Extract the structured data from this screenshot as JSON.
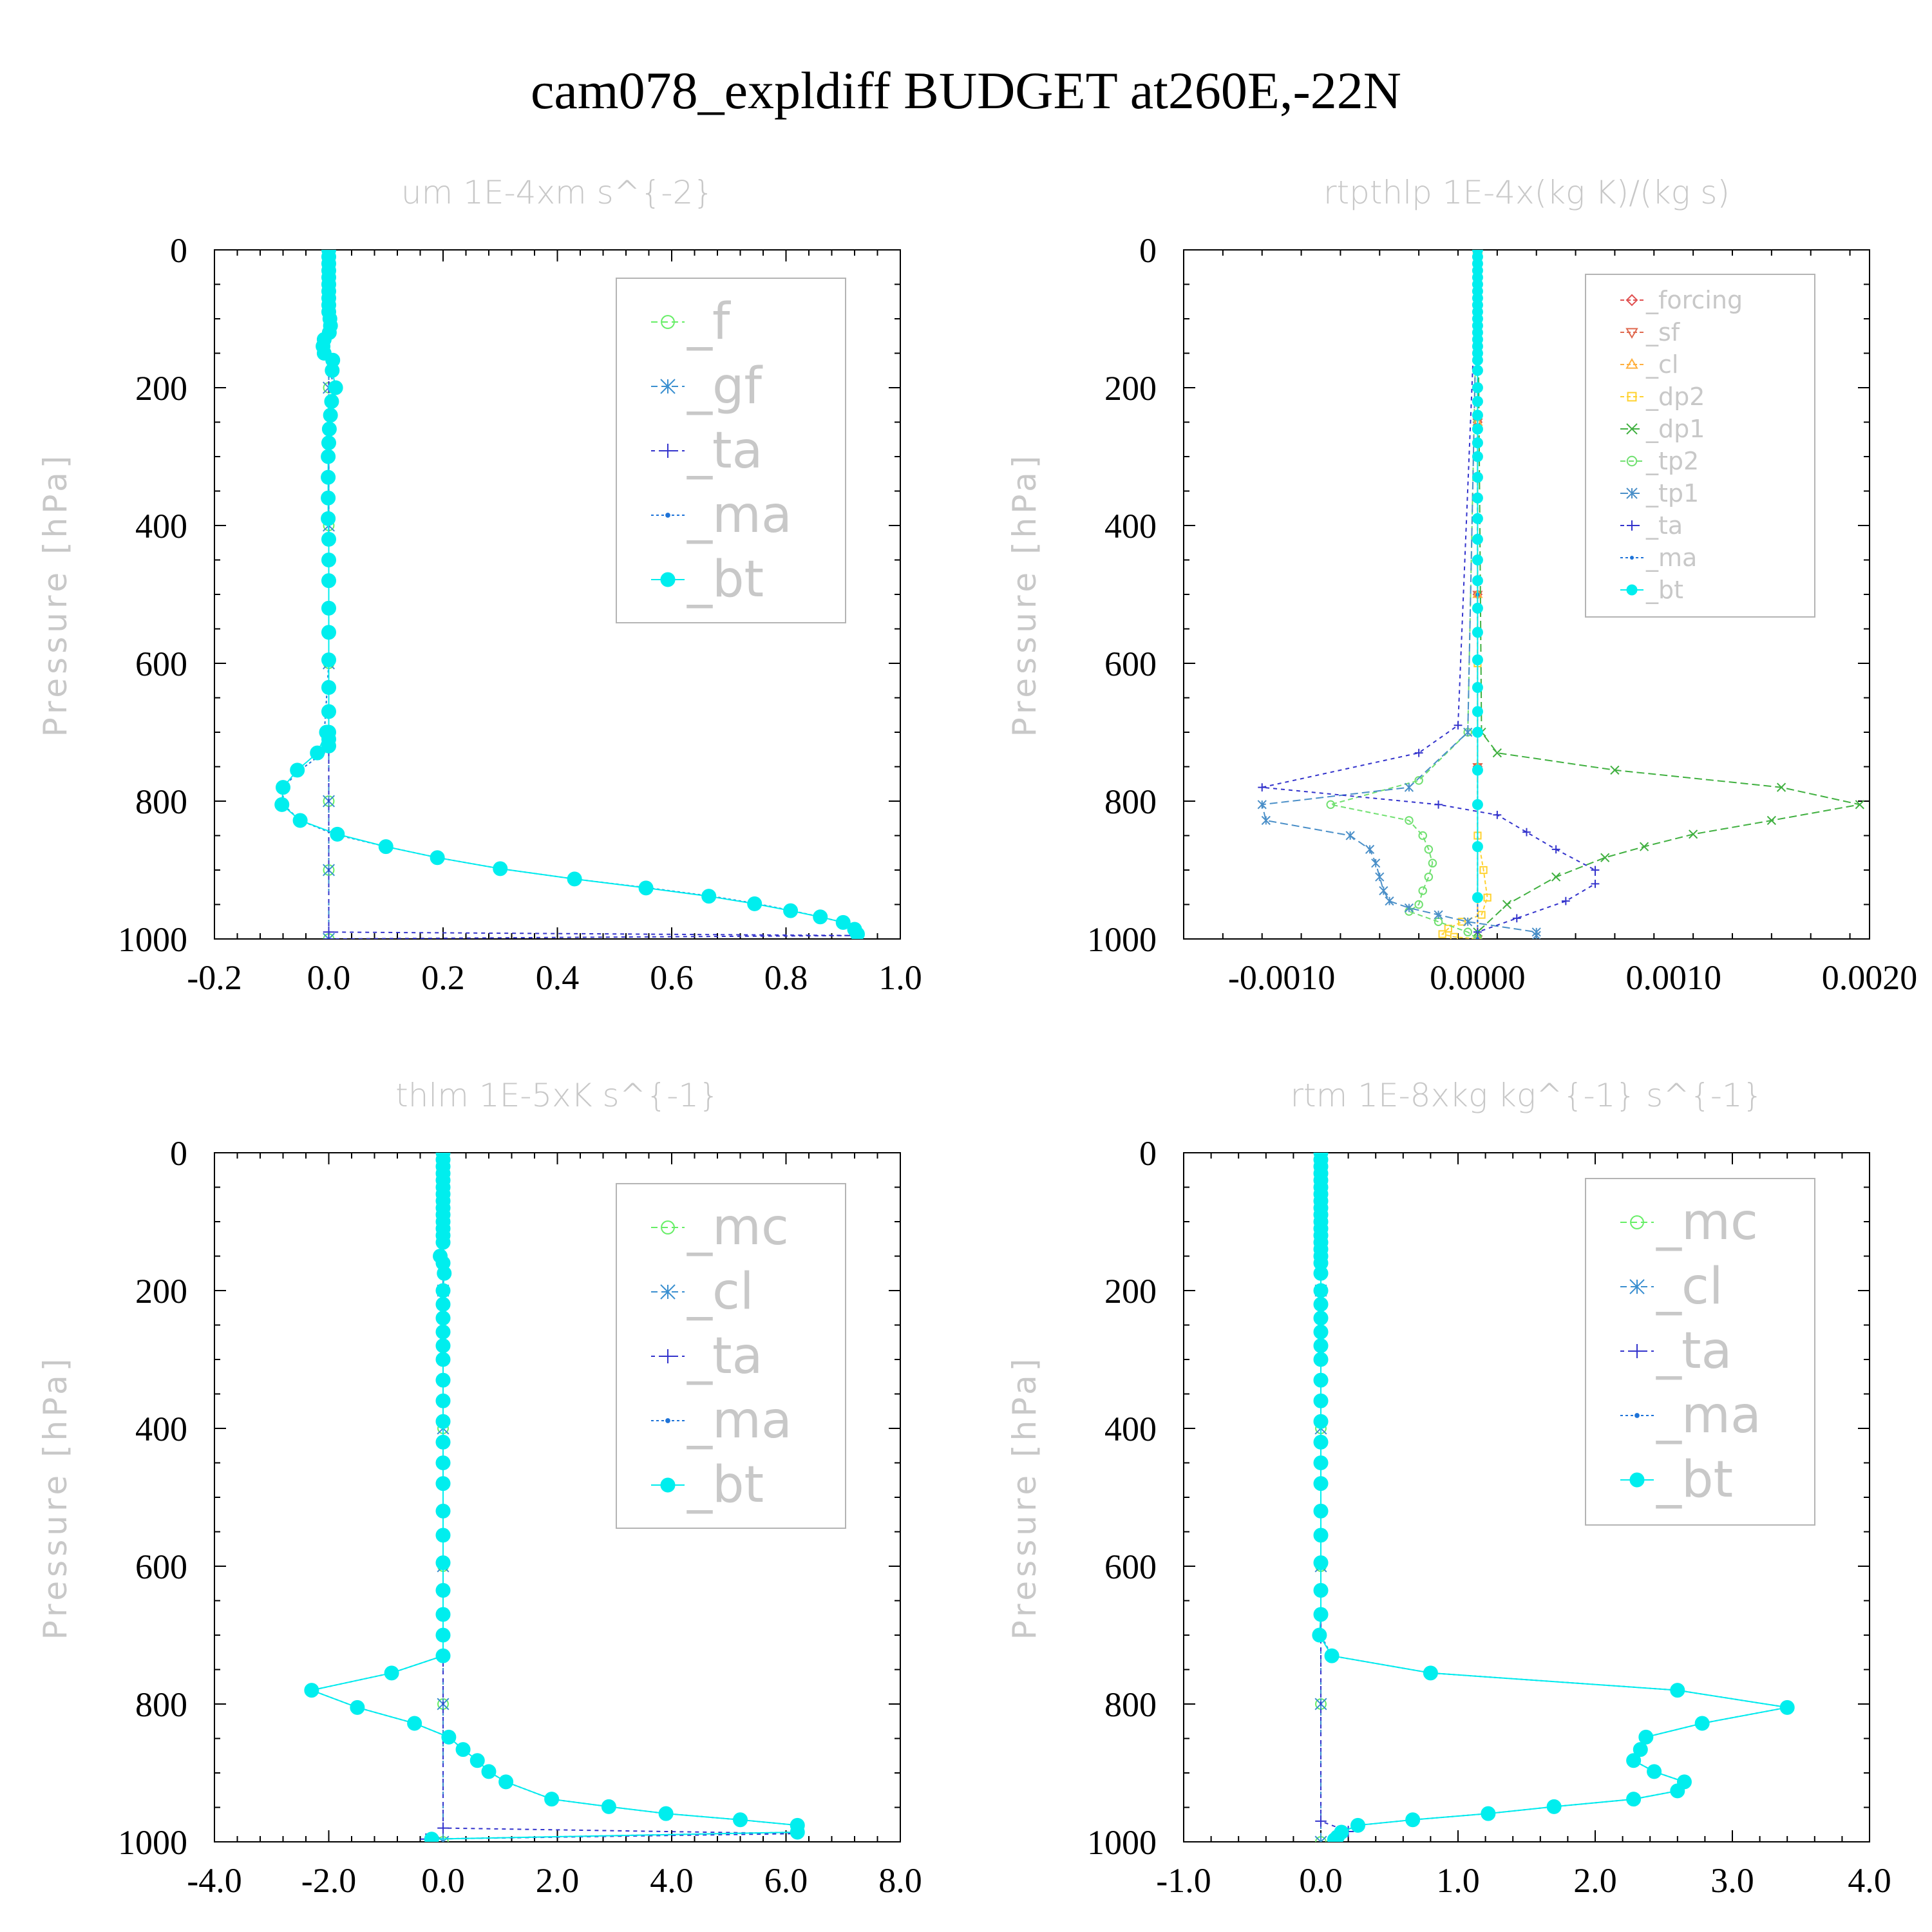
{
  "figure": {
    "title": "cam078_expldiff  BUDGET at260E,-22N"
  },
  "colors": {
    "axis": "#000000",
    "muted_text": "#c8c8c8",
    "legend_box": "#b4b4b4",
    "f": "#66ee66",
    "mc": "#66ee66",
    "gf": "#3a8fd0",
    "cl": "#3a8fd0",
    "ta": "#3333cc",
    "ma": "#1e73d8",
    "bt": "#00eeee",
    "forcing": "#e05050",
    "sf": "#e06a50",
    "cl_orange": "#ffb040",
    "dp2": "#ffd230",
    "dp1": "#40b040",
    "tp2": "#70e070",
    "tp1": "#4a8fc8"
  },
  "chart_data": [
    {
      "type": "line",
      "title": "um   1E-4xm s^{-2}",
      "ylabel": "Pressure [hPa]",
      "xlabel": "",
      "xlim": [
        -0.2,
        1.0
      ],
      "ylim": [
        1000,
        0
      ],
      "xticks": [
        "-0.2",
        "0.0",
        "0.2",
        "0.4",
        "0.6",
        "0.8",
        "1.0"
      ],
      "yticks": [
        "0",
        "200",
        "400",
        "600",
        "800",
        "1000"
      ],
      "legend": [
        "_f",
        "_gf",
        "_ta",
        "_ma",
        "_bt"
      ],
      "series": [
        {
          "name": "_f",
          "x": [
            0,
            0,
            0,
            0,
            0,
            0,
            0
          ],
          "y": [
            0,
            200,
            400,
            600,
            800,
            900,
            1000
          ]
        },
        {
          "name": "_gf",
          "x": [
            0,
            0,
            0,
            0,
            0,
            0,
            0
          ],
          "y": [
            0,
            200,
            400,
            600,
            800,
            900,
            1000
          ]
        },
        {
          "name": "_ta",
          "x": [
            0,
            0,
            0,
            0.92,
            0
          ],
          "y": [
            0,
            700,
            990,
            995,
            1000
          ]
        },
        {
          "name": "_ma",
          "x": [
            0,
            0,
            -0.01,
            0.01,
            0,
            0,
            -0.01,
            -0.05,
            -0.08,
            -0.08,
            -0.05,
            0.01,
            0.1,
            0.19,
            0.3,
            0.43,
            0.56,
            0.67,
            0.75,
            0.81,
            0.86,
            0.9,
            0.92,
            0.92
          ],
          "y": [
            0,
            100,
            140,
            200,
            300,
            600,
            730,
            755,
            780,
            805,
            828,
            848,
            866,
            882,
            898,
            913,
            926,
            938,
            949,
            959,
            968,
            976,
            986,
            993
          ]
        },
        {
          "name": "_bt",
          "x": [
            0,
            0,
            0,
            0,
            0,
            0,
            0,
            0,
            0,
            0,
            0.002,
            0.003,
            0.001,
            -0.008,
            -0.01,
            -0.008,
            0.007,
            0.006,
            0.012,
            0.005,
            0.003,
            0.001,
            0,
            -0.001,
            -0.001,
            -0.001,
            -0.001,
            0,
            0,
            0,
            0,
            0,
            0,
            0,
            0,
            0,
            0,
            0,
            -0.004,
            -0.02,
            -0.055,
            -0.08,
            -0.082,
            -0.05,
            0.015,
            0.1,
            0.19,
            0.3,
            0.43,
            0.555,
            0.665,
            0.745,
            0.808,
            0.86,
            0.9,
            0.92,
            0.925
          ],
          "y": [
            0,
            10,
            20,
            30,
            40,
            50,
            60,
            70,
            80,
            90,
            100,
            110,
            120,
            130,
            140,
            150,
            160,
            175,
            200,
            220,
            240,
            260,
            280,
            300,
            330,
            360,
            390,
            420,
            450,
            480,
            520,
            555,
            595,
            635,
            670,
            700,
            710,
            720,
            700,
            730,
            755,
            780,
            805,
            828,
            848,
            866,
            882,
            898,
            913,
            926,
            938,
            949,
            959,
            968,
            976,
            986,
            993
          ]
        }
      ]
    },
    {
      "type": "line",
      "title": "rtpthlp   1E-4x(kg K)/(kg s)",
      "ylabel": "Pressure [hPa]",
      "xlabel": "",
      "xlim": [
        -0.0015,
        0.002
      ],
      "ylim": [
        1000,
        0
      ],
      "xticks": [
        "-0.0010",
        "0.0000",
        "0.0010",
        "0.0020"
      ],
      "yticks": [
        "0",
        "200",
        "400",
        "600",
        "800",
        "1000"
      ],
      "legend": [
        "_forcing",
        "_sf",
        "_cl",
        "_dp2",
        "_dp1",
        "_tp2",
        "_tp1",
        "_ta",
        "_ma",
        "_bt"
      ],
      "series": [
        {
          "name": "_forcing",
          "x": [
            0,
            0,
            0,
            0,
            0
          ],
          "y": [
            0,
            250,
            500,
            750,
            1000
          ]
        },
        {
          "name": "_sf",
          "x": [
            0,
            0,
            0,
            0,
            0
          ],
          "y": [
            0,
            250,
            500,
            750,
            1000
          ]
        },
        {
          "name": "_cl",
          "x": [
            0,
            0,
            0,
            0,
            0
          ],
          "y": [
            0,
            250,
            500,
            750,
            1000
          ]
        },
        {
          "name": "_dp2",
          "x": [
            0,
            0,
            0,
            3e-05,
            5e-05,
            2e-05,
            -8e-05,
            -0.00015,
            -0.00018,
            -0.00012,
            0
          ],
          "y": [
            0,
            600,
            850,
            900,
            940,
            965,
            975,
            985,
            993,
            997,
            1000
          ]
        },
        {
          "name": "_dp1",
          "x": [
            0,
            2e-05,
            0.0001,
            0.0007,
            0.00155,
            0.00195,
            0.0015,
            0.0011,
            0.00085,
            0.00065,
            0.0004,
            0.00015,
            0
          ],
          "y": [
            0,
            700,
            730,
            755,
            780,
            805,
            828,
            848,
            866,
            882,
            910,
            950,
            990
          ]
        },
        {
          "name": "_tp2",
          "x": [
            0,
            -5e-05,
            -0.0003,
            -0.00075,
            -0.00035,
            -0.00028,
            -0.00025,
            -0.00023,
            -0.00025,
            -0.00028,
            -0.0003,
            -0.00035,
            -0.0002,
            -5e-05,
            0
          ],
          "y": [
            0,
            700,
            770,
            805,
            828,
            850,
            870,
            890,
            910,
            930,
            950,
            960,
            975,
            990,
            1000
          ]
        },
        {
          "name": "_tp1",
          "x": [
            0,
            -5e-05,
            -0.00035,
            -0.0011,
            -0.00108,
            -0.00065,
            -0.00055,
            -0.00052,
            -0.0005,
            -0.00048,
            -0.00045,
            -0.00035,
            -0.0002,
            -5e-05,
            0.0003,
            0.0003
          ],
          "y": [
            0,
            700,
            780,
            805,
            828,
            850,
            870,
            890,
            910,
            930,
            945,
            955,
            965,
            975,
            990,
            995
          ]
        },
        {
          "name": "_ta",
          "x": [
            0,
            -0.0001,
            -0.0003,
            -0.0011,
            -0.0002,
            0.0001,
            0.00025,
            0.0004,
            0.0006,
            0.0006,
            0.00045,
            0.0002,
            0
          ],
          "y": [
            0,
            690,
            730,
            780,
            805,
            820,
            845,
            870,
            900,
            920,
            945,
            970,
            990
          ]
        },
        {
          "name": "_ma",
          "x": [
            0,
            0,
            0
          ],
          "y": [
            0,
            500,
            1000
          ]
        },
        {
          "name": "_bt",
          "x": [
            0,
            0,
            0,
            0,
            0,
            0,
            0,
            0,
            0,
            0,
            0,
            0,
            0,
            0,
            0,
            0,
            0,
            0,
            0,
            0,
            0,
            0,
            0,
            0,
            0,
            0,
            0,
            0,
            0,
            0,
            0,
            0,
            0,
            0,
            0,
            0,
            0,
            0,
            0,
            0
          ],
          "y": [
            0,
            10,
            20,
            30,
            40,
            50,
            60,
            70,
            80,
            90,
            100,
            110,
            120,
            130,
            140,
            150,
            160,
            175,
            200,
            220,
            240,
            260,
            280,
            300,
            330,
            360,
            390,
            420,
            450,
            480,
            520,
            555,
            595,
            635,
            670,
            700,
            755,
            805,
            866,
            940
          ]
        }
      ]
    },
    {
      "type": "line",
      "title": "thlm   1E-5xK s^{-1}",
      "ylabel": "Pressure [hPa]",
      "xlabel": "",
      "xlim": [
        -4.0,
        8.0
      ],
      "ylim": [
        1000,
        0
      ],
      "xticks": [
        "-4.0",
        "-2.0",
        "0.0",
        "2.0",
        "4.0",
        "6.0",
        "8.0"
      ],
      "yticks": [
        "0",
        "200",
        "400",
        "600",
        "800",
        "1000"
      ],
      "legend": [
        "_mc",
        "_cl",
        "_ta",
        "_ma",
        "_bt"
      ],
      "series": [
        {
          "name": "_mc",
          "x": [
            0,
            0,
            0,
            0,
            0,
            0
          ],
          "y": [
            0,
            200,
            400,
            600,
            800,
            1000
          ]
        },
        {
          "name": "_cl",
          "x": [
            0,
            0,
            0,
            0,
            0,
            0
          ],
          "y": [
            0,
            200,
            400,
            600,
            800,
            1000
          ]
        },
        {
          "name": "_ta",
          "x": [
            0,
            0,
            6.2,
            -0.3
          ],
          "y": [
            0,
            980,
            988,
            996
          ]
        },
        {
          "name": "_ma",
          "x": [
            0,
            0,
            -0.9,
            -2.3,
            -1.5,
            -0.5,
            0.1,
            0.35,
            0.6,
            0.8,
            1.1,
            1.9,
            2.9,
            3.9,
            5.2,
            6.2,
            6.2,
            -0.2
          ],
          "y": [
            0,
            730,
            755,
            780,
            805,
            828,
            848,
            866,
            882,
            898,
            913,
            938,
            949,
            959,
            968,
            976,
            986,
            996
          ]
        },
        {
          "name": "_bt",
          "x": [
            0,
            0,
            0,
            0,
            0,
            0,
            0,
            0,
            0,
            0,
            0,
            0,
            0,
            0,
            -0.05,
            0,
            0.02,
            0,
            0,
            0,
            0,
            0,
            0,
            0,
            0,
            0,
            0,
            0,
            0,
            0,
            0,
            0,
            0,
            0,
            0,
            0,
            -0.9,
            -2.3,
            -1.5,
            -0.5,
            0.1,
            0.35,
            0.6,
            0.8,
            1.1,
            1.9,
            2.9,
            3.9,
            5.2,
            6.2,
            6.2,
            -0.2
          ],
          "y": [
            0,
            10,
            20,
            30,
            40,
            50,
            60,
            70,
            80,
            90,
            100,
            110,
            120,
            130,
            150,
            160,
            175,
            200,
            220,
            240,
            260,
            280,
            300,
            330,
            360,
            390,
            420,
            450,
            480,
            520,
            555,
            595,
            635,
            670,
            700,
            730,
            755,
            780,
            805,
            828,
            848,
            866,
            882,
            898,
            913,
            938,
            949,
            959,
            968,
            976,
            986,
            996
          ]
        }
      ]
    },
    {
      "type": "line",
      "title": "rtm   1E-8xkg kg^{-1} s^{-1}",
      "ylabel": "Pressure [hPa]",
      "xlabel": "",
      "xlim": [
        -1.0,
        4.0
      ],
      "ylim": [
        1000,
        0
      ],
      "xticks": [
        "-1.0",
        "0.0",
        "1.0",
        "2.0",
        "3.0",
        "4.0"
      ],
      "yticks": [
        "0",
        "200",
        "400",
        "600",
        "800",
        "1000"
      ],
      "legend": [
        "_mc",
        "_cl",
        "_ta",
        "_ma",
        "_bt"
      ],
      "series": [
        {
          "name": "_mc",
          "x": [
            0,
            0,
            0,
            0,
            0,
            0
          ],
          "y": [
            0,
            200,
            400,
            600,
            800,
            1000
          ]
        },
        {
          "name": "_cl",
          "x": [
            0,
            0,
            0,
            0,
            0,
            0
          ],
          "y": [
            0,
            200,
            400,
            600,
            800,
            1000
          ]
        },
        {
          "name": "_ta",
          "x": [
            0,
            0,
            0.2,
            0.1
          ],
          "y": [
            0,
            970,
            985,
            995
          ]
        },
        {
          "name": "_ma",
          "x": [
            0,
            0,
            0.08,
            0.8,
            2.6,
            3.4,
            2.78,
            2.37,
            2.33,
            2.28,
            2.43,
            2.65,
            2.6,
            2.28,
            1.7,
            1.22,
            0.67,
            0.27,
            0.15,
            0.12,
            0.1
          ],
          "y": [
            0,
            700,
            730,
            755,
            780,
            805,
            828,
            848,
            866,
            882,
            898,
            913,
            926,
            938,
            949,
            959,
            968,
            976,
            986,
            993,
            997
          ]
        },
        {
          "name": "_bt",
          "x": [
            0,
            0,
            0,
            0,
            0,
            0,
            0,
            0,
            0,
            0,
            0,
            0,
            0,
            0,
            0,
            0,
            0,
            0,
            0,
            0,
            0,
            0,
            0,
            0,
            0,
            0,
            0,
            0,
            0,
            0,
            0,
            0,
            0,
            0,
            0,
            -0.01,
            0.08,
            0.8,
            2.6,
            3.4,
            2.78,
            2.37,
            2.33,
            2.28,
            2.43,
            2.65,
            2.6,
            2.28,
            1.7,
            1.22,
            0.67,
            0.27,
            0.15,
            0.12,
            0.1
          ],
          "y": [
            0,
            10,
            20,
            30,
            40,
            50,
            60,
            70,
            80,
            90,
            100,
            110,
            120,
            130,
            140,
            150,
            160,
            175,
            200,
            220,
            240,
            260,
            280,
            300,
            330,
            360,
            390,
            420,
            450,
            480,
            520,
            555,
            595,
            635,
            670,
            700,
            730,
            755,
            780,
            805,
            828,
            848,
            866,
            882,
            898,
            913,
            926,
            938,
            949,
            959,
            968,
            976,
            986,
            993,
            997
          ]
        }
      ]
    }
  ]
}
